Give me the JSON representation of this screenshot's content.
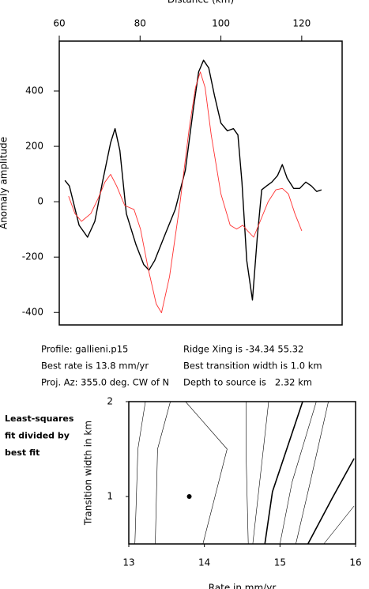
{
  "chart_data": [
    {
      "type": "line",
      "title": "Distance (km)",
      "y_label": "Anomaly amplitude",
      "xlim": [
        60,
        130
      ],
      "ylim": [
        -445,
        580
      ],
      "xticks": [
        60,
        80,
        100,
        120
      ],
      "yticks": [
        -400,
        -200,
        0,
        200,
        400
      ],
      "series": [
        {
          "color": "#000000",
          "x": [
            61.4,
            62.5,
            64.9,
            67,
            68.8,
            70.7,
            72.7,
            73.8,
            75,
            76.6,
            79,
            80.9,
            82.2,
            83.6,
            86.3,
            88.7,
            91.2,
            93.1,
            94.5,
            95.7,
            97,
            98.4,
            100,
            101.6,
            103.1,
            104.2,
            105.2,
            106.4,
            107.8,
            109,
            110.1,
            111.3,
            112.6,
            114,
            115.2,
            116.4,
            118,
            119.5,
            121,
            122.4,
            123.7,
            124.9
          ],
          "values": [
            77,
            57,
            -85,
            -128,
            -71,
            71,
            213,
            264,
            185,
            -43,
            -156,
            -227,
            -247,
            -213,
            -114,
            -28,
            114,
            327,
            469,
            511,
            483,
            384,
            284,
            256,
            264,
            241,
            71,
            -213,
            -355,
            -128,
            43,
            57,
            71,
            94,
            134,
            85,
            48,
            48,
            71,
            57,
            37,
            43
          ]
        },
        {
          "color": "#ff3030",
          "x": [
            62.3,
            63.9,
            65.5,
            67.8,
            69.7,
            71.3,
            72.7,
            74.2,
            76.2,
            78.5,
            80.1,
            82,
            84,
            85.3,
            87.3,
            89.8,
            92.2,
            93.7,
            94.9,
            96.1,
            97.6,
            100,
            102.3,
            103.9,
            105.4,
            106.6,
            108.1,
            109.7,
            111.7,
            113.6,
            115.2,
            116.7,
            118.3,
            120
          ],
          "values": [
            20,
            -43,
            -71,
            -43,
            14,
            71,
            99,
            57,
            -14,
            -28,
            -99,
            -241,
            -369,
            -401,
            -270,
            -14,
            270,
            412,
            469,
            412,
            241,
            28,
            -85,
            -99,
            -85,
            -105,
            -128,
            -71,
            0,
            43,
            48,
            28,
            -43,
            -105
          ]
        }
      ]
    },
    {
      "type": "contour",
      "x_label": "Rate in mm/yr",
      "y_label": "Transition width in km",
      "xlim": [
        13,
        16
      ],
      "ylim": [
        0.5,
        2
      ],
      "xticks": [
        13,
        14,
        15,
        16
      ],
      "yticks": [
        1,
        2
      ],
      "series": [
        {
          "color": "#000000",
          "bold": false,
          "x": [
            13.08,
            13.12,
            13.22
          ],
          "values": [
            0.5,
            1.5,
            2
          ]
        },
        {
          "color": "#000000",
          "bold": false,
          "x": [
            13.35,
            13.38,
            13.55
          ],
          "values": [
            0.5,
            1.5,
            2
          ]
        },
        {
          "color": "#000000",
          "bold": false,
          "x": [
            13.98,
            14.3,
            13.75
          ],
          "values": [
            0.5,
            1.5,
            2
          ]
        },
        {
          "color": "#000000",
          "bold": false,
          "x": [
            14.58,
            14.55,
            14.55
          ],
          "values": [
            0.5,
            1.5,
            2
          ]
        },
        {
          "color": "#000000",
          "bold": false,
          "x": [
            14.64,
            14.71,
            14.85
          ],
          "values": [
            0.5,
            1,
            2
          ]
        },
        {
          "color": "#000000",
          "bold": true,
          "x": [
            14.8,
            14.9,
            15.3
          ],
          "values": [
            0.5,
            1.05,
            2
          ]
        },
        {
          "color": "#000000",
          "bold": false,
          "x": [
            15.0,
            15.16,
            15.48
          ],
          "values": [
            0.5,
            1.15,
            2
          ]
        },
        {
          "color": "#000000",
          "bold": false,
          "x": [
            15.21,
            15.4,
            15.64
          ],
          "values": [
            0.5,
            1.15,
            2
          ]
        },
        {
          "color": "#000000",
          "bold": true,
          "x": [
            15.37,
            15.69,
            15.98
          ],
          "values": [
            0.5,
            0.98,
            1.4
          ]
        },
        {
          "color": "#000000",
          "bold": false,
          "x": [
            15.58,
            15.98
          ],
          "values": [
            0.5,
            0.9
          ]
        }
      ],
      "points": {
        "x": [
          13.8
        ],
        "values": [
          1.0
        ],
        "color": "#000000"
      }
    }
  ],
  "info": [
    [
      "Profile: gallieni.p15",
      "Ridge Xing is -34.34 55.32"
    ],
    [
      "Best rate is 13.8 mm/yr",
      "Best transition width is 1.0 km"
    ],
    [
      "Proj. Az: 355.0 deg. CW of N",
      "Depth to source is   2.32 km"
    ]
  ],
  "note": [
    "Least-squares",
    "fit divided by",
    "best fit"
  ]
}
